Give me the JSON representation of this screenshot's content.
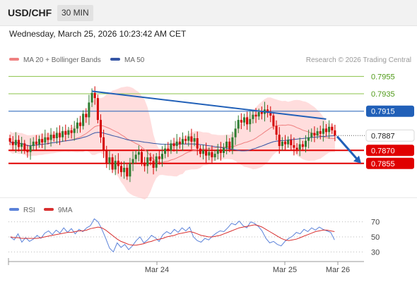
{
  "header": {
    "symbol": "USD/CHF",
    "timeframe_label": "30 MIN",
    "datetime": "Wednesday, March 25, 2026 10:23:42 AM CET"
  },
  "legend": {
    "ma20_label": "MA 20 + Bollinger Bands",
    "ma50_label": "MA 50",
    "credit": "Research © 2026 Trading Central"
  },
  "rsi_legend": {
    "rsi_label": "RSI",
    "ma_label": "9MA"
  },
  "colors": {
    "candle_up": "#2e7d32",
    "candle_down": "#d50000",
    "bollinger_fill": "#ffc7c7",
    "ma20": "#ef8080",
    "ma50": "#3555a5",
    "resistance_light": "#8bc34a",
    "resistance_blue": "#2160b8",
    "support_red": "#e00000",
    "rsi_line": "#5b82d9",
    "rsi_ma": "#d83030"
  },
  "chart_data": [
    {
      "type": "candlestick",
      "title": "USD/CHF 30 MIN",
      "x_ticks": [
        "Mar 24",
        "Mar 25",
        "Mar 26"
      ],
      "ylim": [
        0.782,
        0.7965
      ],
      "last_price": 0.7887,
      "last_price_label": "0.7887",
      "levels": [
        {
          "value": 0.7955,
          "label": "0.7955",
          "kind": "resistance",
          "style": "light"
        },
        {
          "value": 0.7935,
          "label": "0.7935",
          "kind": "resistance",
          "style": "light"
        },
        {
          "value": 0.7915,
          "label": "0.7915",
          "kind": "pivot",
          "style": "blue"
        },
        {
          "value": 0.787,
          "label": "0.7870",
          "kind": "support",
          "style": "red"
        },
        {
          "value": 0.7855,
          "label": "0.7855",
          "kind": "support",
          "style": "red"
        }
      ],
      "trendline": {
        "from": 0.7938,
        "to": 0.7906
      },
      "projection": {
        "from": 0.7886,
        "to": 0.7855
      },
      "closes": [
        0.788,
        0.7876,
        0.7882,
        0.7874,
        0.7878,
        0.787,
        0.7868,
        0.7875,
        0.788,
        0.7877,
        0.7883,
        0.7879,
        0.7885,
        0.7882,
        0.7888,
        0.7884,
        0.789,
        0.7885,
        0.7892,
        0.7888,
        0.7893,
        0.789,
        0.7895,
        0.7902,
        0.7898,
        0.7912,
        0.7908,
        0.7925,
        0.7936,
        0.793,
        0.7905,
        0.7885,
        0.787,
        0.7855,
        0.7862,
        0.7848,
        0.7858,
        0.7852,
        0.7845,
        0.785,
        0.784,
        0.7855,
        0.786,
        0.7865,
        0.7868,
        0.7856,
        0.7852,
        0.7862,
        0.7858,
        0.785,
        0.7863,
        0.786,
        0.7866,
        0.7872,
        0.787,
        0.7878,
        0.7875,
        0.788,
        0.7877,
        0.7883,
        0.7881,
        0.7886,
        0.788,
        0.7884,
        0.7872,
        0.7866,
        0.787,
        0.7864,
        0.7868,
        0.7862,
        0.7866,
        0.7871,
        0.7867,
        0.7873,
        0.788,
        0.7872,
        0.7885,
        0.7895,
        0.7905,
        0.7902,
        0.7908,
        0.79,
        0.7906,
        0.7911,
        0.7909,
        0.7914,
        0.7912,
        0.7917,
        0.7913,
        0.791,
        0.7898,
        0.7888,
        0.7875,
        0.788,
        0.7877,
        0.7882,
        0.7876,
        0.7873,
        0.7871,
        0.7877,
        0.7874,
        0.7881,
        0.7885,
        0.789,
        0.7887,
        0.7892,
        0.7889,
        0.7895,
        0.7891,
        0.7897,
        0.7893,
        0.7887
      ]
    },
    {
      "type": "line",
      "title": "RSI",
      "ylim": [
        20,
        80
      ],
      "y_ticks": [
        70,
        50,
        30
      ],
      "series": [
        {
          "name": "RSI",
          "values": [
            50,
            46,
            54,
            43,
            49,
            44,
            47,
            52,
            48,
            55,
            58,
            53,
            59,
            55,
            62,
            56,
            61,
            54,
            60,
            57,
            62,
            65,
            74,
            70,
            60,
            48,
            35,
            30,
            42,
            36,
            40,
            33,
            38,
            45,
            50,
            42,
            46,
            52,
            49,
            44,
            53,
            57,
            54,
            60,
            56,
            62,
            58,
            63,
            50,
            45,
            43,
            48,
            46,
            51,
            55,
            58,
            57,
            62,
            68,
            66,
            71,
            65,
            62,
            70,
            68,
            64,
            58,
            48,
            42,
            44,
            40,
            38,
            44,
            48,
            51,
            56,
            54,
            60,
            57,
            62,
            59,
            63,
            60,
            58,
            56,
            46
          ]
        },
        {
          "name": "9MA",
          "values": [
            50,
            49,
            49,
            48,
            48,
            48,
            48,
            48,
            49,
            50,
            51,
            52,
            53,
            54,
            55,
            56,
            56,
            57,
            58,
            58,
            59,
            61,
            62,
            63,
            62,
            59,
            55,
            51,
            47,
            44,
            42,
            40,
            39,
            39,
            40,
            41,
            43,
            44,
            46,
            47,
            48,
            50,
            51,
            52,
            54,
            55,
            56,
            57,
            56,
            54,
            52,
            51,
            50,
            50,
            51,
            52,
            54,
            56,
            58,
            60,
            62,
            63,
            64,
            65,
            66,
            65,
            63,
            60,
            57,
            54,
            51,
            48,
            46,
            45,
            46,
            47,
            49,
            51,
            53,
            55,
            57,
            58,
            59,
            59,
            58,
            57
          ]
        }
      ]
    }
  ]
}
